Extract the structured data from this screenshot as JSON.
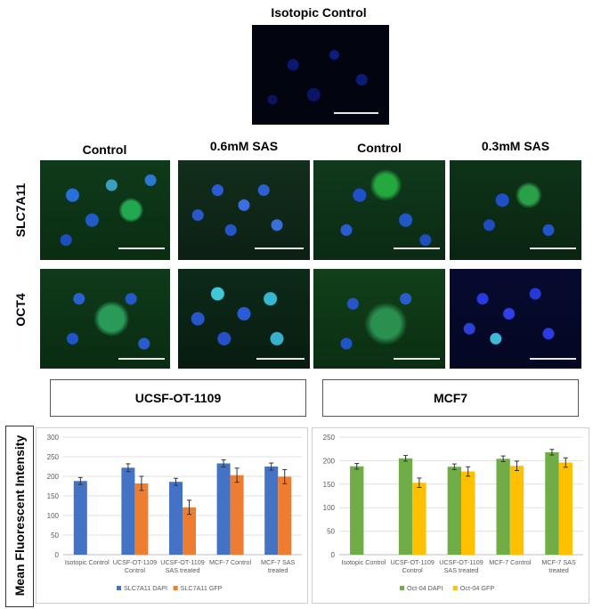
{
  "figure": {
    "top_title": "Isotopic Control",
    "column_titles": [
      "Control",
      "0.6mM SAS",
      "Control",
      "0.3mM SAS"
    ],
    "row_labels": [
      "SLC7A11",
      "OCT4"
    ],
    "group_labels": [
      "UCSF-OT-1109",
      "MCF7"
    ],
    "y_axis_title": "Mean Fluorescent Intensity"
  },
  "chart_data": [
    {
      "type": "bar",
      "title": "",
      "categories": [
        "Isotopic Control",
        "UCSF-OT-1109 Control",
        "UCSF-OT-1109 SAS treated",
        "MCF-7 Control",
        "MCF-7 SAS treated"
      ],
      "category_lines": [
        [
          "Isotopic Control"
        ],
        [
          "UCSF-OT-1109",
          "Control"
        ],
        [
          "UCSF-OT-1109",
          "SAS treated"
        ],
        [
          "MCF-7 Control"
        ],
        [
          "MCF-7 SAS",
          "treated"
        ]
      ],
      "series": [
        {
          "name": "SLC7A11 DAPI",
          "color": "#4472c4",
          "values": [
            188,
            222,
            186,
            233,
            225
          ],
          "errors": [
            9,
            10,
            9,
            9,
            9
          ]
        },
        {
          "name": "SLC7A11 GFP",
          "color": "#ed7d31",
          "values": [
            null,
            182,
            121,
            203,
            199
          ],
          "errors": [
            null,
            18,
            18,
            18,
            18
          ]
        }
      ],
      "ylim": [
        0,
        300
      ],
      "yticks": [
        0,
        50,
        100,
        150,
        200,
        250,
        300
      ],
      "grid": true,
      "legend": "bottom"
    },
    {
      "type": "bar",
      "title": "",
      "categories": [
        "Isotopic Control",
        "UCSF-OT-1109 Control",
        "UCSF-OT-1109 SAS treated",
        "MCF-7 Control",
        "MCF-7 SAS treated"
      ],
      "category_lines": [
        [
          "Isotopic Control"
        ],
        [
          "UCSF-OT-1109",
          "Control"
        ],
        [
          "UCSF-OT-1109",
          "SAS treated"
        ],
        [
          "MCF-7 Control"
        ],
        [
          "MCF-7 SAS",
          "treated"
        ]
      ],
      "series": [
        {
          "name": "Oct-04 DAPI",
          "color": "#70ad47",
          "values": [
            188,
            205,
            187,
            204,
            218
          ],
          "errors": [
            6,
            6,
            6,
            6,
            6
          ]
        },
        {
          "name": "Oct-04 GFP",
          "color": "#ffc000",
          "values": [
            null,
            153,
            177,
            189,
            196
          ],
          "errors": [
            null,
            10,
            10,
            10,
            10
          ]
        }
      ],
      "ylim": [
        0,
        250
      ],
      "yticks": [
        0,
        50,
        100,
        150,
        200,
        250
      ],
      "grid": true,
      "legend": "bottom"
    }
  ]
}
